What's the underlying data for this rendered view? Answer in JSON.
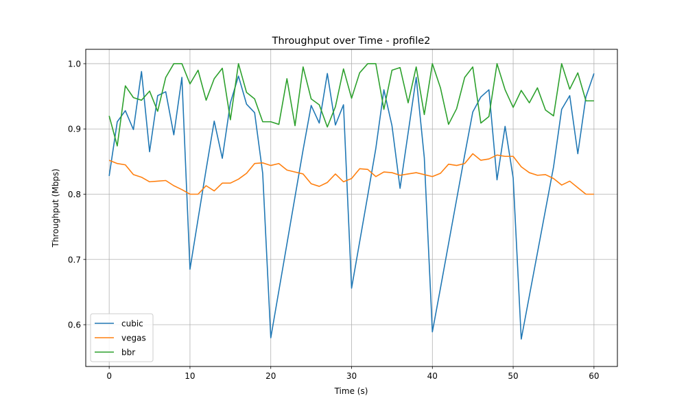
{
  "chart_data": {
    "type": "line",
    "title": "Throughput over Time - profile2",
    "xlabel": "Time (s)",
    "ylabel": "Throughput (Mbps)",
    "xlim": [
      -2.9,
      62.9
    ],
    "ylim": [
      0.536,
      1.022
    ],
    "xticks": [
      0,
      10,
      20,
      30,
      40,
      50,
      60
    ],
    "yticks": [
      0.6,
      0.7,
      0.8,
      0.9,
      1.0
    ],
    "xtick_labels": [
      "0",
      "10",
      "20",
      "30",
      "40",
      "50",
      "60"
    ],
    "ytick_labels": [
      "0.6",
      "0.7",
      "0.8",
      "0.9",
      "1.0"
    ],
    "grid": true,
    "legend_position": "lower-left",
    "x": [
      0,
      1,
      2,
      3,
      4,
      5,
      6,
      7,
      8,
      9,
      10,
      11,
      12,
      13,
      14,
      15,
      16,
      17,
      18,
      19,
      20,
      21,
      22,
      23,
      24,
      25,
      26,
      27,
      28,
      29,
      30,
      31,
      32,
      33,
      34,
      35,
      36,
      37,
      38,
      39,
      40,
      41,
      42,
      43,
      44,
      45,
      46,
      47,
      48,
      49,
      50,
      51,
      52,
      53,
      54,
      55,
      56,
      57,
      58,
      59,
      60
    ],
    "series": [
      {
        "name": "cubic",
        "color": "#1f77b4",
        "values": [
          0.828,
          0.911,
          0.928,
          0.899,
          0.988,
          0.865,
          0.951,
          0.957,
          0.891,
          0.979,
          0.685,
          0.762,
          0.838,
          0.912,
          0.855,
          0.94,
          0.981,
          0.938,
          0.925,
          0.832,
          0.58,
          0.652,
          0.724,
          0.796,
          0.868,
          0.936,
          0.909,
          0.985,
          0.906,
          0.937,
          0.656,
          0.727,
          0.798,
          0.87,
          0.96,
          0.905,
          0.809,
          0.894,
          0.979,
          0.856,
          0.589,
          0.656,
          0.724,
          0.792,
          0.86,
          0.926,
          0.949,
          0.96,
          0.822,
          0.904,
          0.825,
          0.578,
          0.644,
          0.71,
          0.776,
          0.842,
          0.93,
          0.951,
          0.862,
          0.949,
          0.985
        ]
      },
      {
        "name": "vegas",
        "color": "#ff7f0e",
        "values": [
          0.852,
          0.847,
          0.845,
          0.83,
          0.826,
          0.819,
          0.82,
          0.821,
          0.813,
          0.807,
          0.8,
          0.8,
          0.813,
          0.805,
          0.817,
          0.817,
          0.823,
          0.832,
          0.847,
          0.848,
          0.844,
          0.847,
          0.837,
          0.834,
          0.831,
          0.816,
          0.812,
          0.818,
          0.831,
          0.819,
          0.824,
          0.839,
          0.838,
          0.827,
          0.834,
          0.833,
          0.829,
          0.831,
          0.833,
          0.83,
          0.827,
          0.832,
          0.846,
          0.844,
          0.847,
          0.862,
          0.852,
          0.854,
          0.86,
          0.858,
          0.858,
          0.842,
          0.833,
          0.829,
          0.83,
          0.824,
          0.814,
          0.82,
          0.81,
          0.8,
          0.8
        ]
      },
      {
        "name": "bbr",
        "color": "#2ca02c",
        "values": [
          0.92,
          0.874,
          0.966,
          0.948,
          0.944,
          0.958,
          0.927,
          0.979,
          1.0,
          1.0,
          0.969,
          0.99,
          0.944,
          0.977,
          0.993,
          0.914,
          1.0,
          0.956,
          0.946,
          0.911,
          0.911,
          0.907,
          0.977,
          0.905,
          0.995,
          0.946,
          0.937,
          0.903,
          0.934,
          0.992,
          0.947,
          0.986,
          1.0,
          1.0,
          0.93,
          0.99,
          0.994,
          0.94,
          0.995,
          0.922,
          1.0,
          0.963,
          0.907,
          0.931,
          0.979,
          0.995,
          0.909,
          0.919,
          1.0,
          0.96,
          0.933,
          0.959,
          0.94,
          0.963,
          0.929,
          0.92,
          1.0,
          0.961,
          0.986,
          0.943,
          0.943
        ]
      }
    ]
  }
}
